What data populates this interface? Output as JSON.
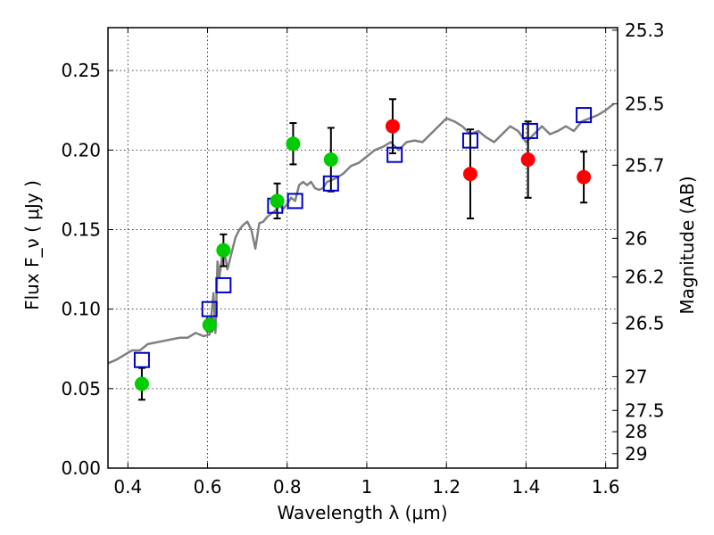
{
  "chart_data": {
    "type": "scatter",
    "xlabel": "Wavelength  λ (μm)",
    "ylabel": "Flux  F_ν  ( μJy )",
    "ylabel_right": "Magnitude (AB)",
    "xlim": [
      0.35,
      1.63
    ],
    "ylim": [
      0,
      0.277
    ],
    "grid": true,
    "x_ticks": [
      0.4,
      0.6,
      0.8,
      1.0,
      1.2,
      1.4,
      1.6
    ],
    "x_tick_labels": [
      "0.4",
      "0.6",
      "0.8",
      "1",
      "1.2",
      "1.4",
      "1.6"
    ],
    "y_ticks": [
      0.0,
      0.05,
      0.1,
      0.15,
      0.2,
      0.25
    ],
    "y_tick_labels": [
      "0.00",
      "0.05",
      "0.10",
      "0.15",
      "0.20",
      "0.25"
    ],
    "mag_ticks": [
      {
        "label": "25.3",
        "flux": 0.2754
      },
      {
        "label": "25.5",
        "flux": 0.2291
      },
      {
        "label": "25.7",
        "flux": 0.1905
      },
      {
        "label": "26",
        "flux": 0.1445
      },
      {
        "label": "26.2",
        "flux": 0.1202
      },
      {
        "label": "26.5",
        "flux": 0.0912
      },
      {
        "label": "27",
        "flux": 0.0575
      },
      {
        "label": "27.5",
        "flux": 0.0363
      },
      {
        "label": "28",
        "flux": 0.0229
      },
      {
        "label": "29",
        "flux": 0.0091
      }
    ],
    "series": [
      {
        "role": "model-spectrum",
        "color": "#808080",
        "x": [
          0.35,
          0.37,
          0.39,
          0.41,
          0.43,
          0.45,
          0.47,
          0.49,
          0.51,
          0.53,
          0.55,
          0.57,
          0.59,
          0.605,
          0.615,
          0.62,
          0.625,
          0.63,
          0.64,
          0.65,
          0.66,
          0.67,
          0.68,
          0.69,
          0.7,
          0.71,
          0.72,
          0.73,
          0.74,
          0.75,
          0.76,
          0.77,
          0.78,
          0.79,
          0.8,
          0.81,
          0.82,
          0.83,
          0.84,
          0.85,
          0.86,
          0.87,
          0.88,
          0.89,
          0.9,
          0.92,
          0.94,
          0.96,
          0.98,
          1.0,
          1.02,
          1.04,
          1.06,
          1.08,
          1.1,
          1.12,
          1.14,
          1.16,
          1.18,
          1.2,
          1.22,
          1.24,
          1.26,
          1.28,
          1.3,
          1.32,
          1.34,
          1.36,
          1.38,
          1.4,
          1.42,
          1.44,
          1.46,
          1.48,
          1.5,
          1.52,
          1.54,
          1.56,
          1.58,
          1.6,
          1.62
        ],
        "y": [
          0.066,
          0.068,
          0.071,
          0.074,
          0.074,
          0.078,
          0.079,
          0.08,
          0.081,
          0.082,
          0.082,
          0.085,
          0.083,
          0.084,
          0.11,
          0.085,
          0.13,
          0.12,
          0.14,
          0.125,
          0.135,
          0.145,
          0.15,
          0.153,
          0.155,
          0.15,
          0.138,
          0.154,
          0.155,
          0.158,
          0.16,
          0.162,
          0.165,
          0.163,
          0.166,
          0.17,
          0.168,
          0.178,
          0.18,
          0.178,
          0.18,
          0.176,
          0.175,
          0.176,
          0.18,
          0.182,
          0.185,
          0.19,
          0.192,
          0.196,
          0.2,
          0.202,
          0.205,
          0.2,
          0.205,
          0.206,
          0.205,
          0.21,
          0.215,
          0.22,
          0.218,
          0.215,
          0.21,
          0.212,
          0.208,
          0.205,
          0.21,
          0.215,
          0.212,
          0.205,
          0.21,
          0.215,
          0.21,
          0.212,
          0.215,
          0.212,
          0.218,
          0.22,
          0.222,
          0.225,
          0.229
        ]
      },
      {
        "role": "model-photometry",
        "color": "#0000cc",
        "marker": "open-square",
        "x": [
          0.435,
          0.605,
          0.64,
          0.77,
          0.82,
          0.91,
          1.07,
          1.26,
          1.41,
          1.545
        ],
        "y": [
          0.068,
          0.1,
          0.115,
          0.165,
          0.168,
          0.179,
          0.197,
          0.206,
          0.212,
          0.222
        ]
      },
      {
        "role": "observed-optical",
        "color": "#00cc00",
        "marker": "filled-circle",
        "x": [
          0.435,
          0.605,
          0.64,
          0.775,
          0.815,
          0.91
        ],
        "y": [
          0.053,
          0.09,
          0.137,
          0.168,
          0.204,
          0.194
        ],
        "yerr": [
          0.01,
          0.004,
          0.01,
          0.011,
          0.013,
          0.02
        ]
      },
      {
        "role": "observed-nir",
        "color": "#ff0000",
        "marker": "filled-circle",
        "x": [
          1.065,
          1.26,
          1.405,
          1.545
        ],
        "y": [
          0.215,
          0.185,
          0.194,
          0.183
        ],
        "yerr": [
          0.017,
          0.028,
          0.024,
          0.016
        ]
      }
    ]
  }
}
